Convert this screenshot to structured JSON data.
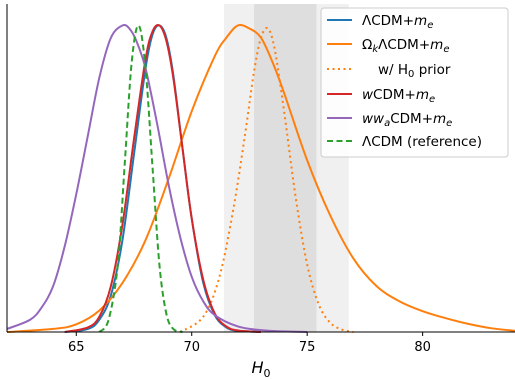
{
  "chart_data": {
    "type": "line",
    "title": "",
    "xlabel": "H_0",
    "ylabel": "",
    "xlim": [
      62,
      84
    ],
    "ylim": [
      0,
      1.07
    ],
    "xticks": [
      65,
      70,
      75,
      80
    ],
    "yticks": [],
    "grid": false,
    "legend_position": "top-right",
    "shaded_bands": [
      {
        "name": "outer band",
        "x": [
          71.4,
          76.8
        ],
        "color": "#f0f0f0"
      },
      {
        "name": "inner band",
        "x": [
          72.7,
          75.4
        ],
        "color": "#dedede"
      }
    ],
    "series": [
      {
        "name": "ΛCDM+m_e",
        "color": "#1f77b4",
        "style": "solid",
        "x": [
          64.5,
          65.5,
          66.0,
          66.5,
          67.0,
          67.5,
          68.0,
          68.3,
          68.6,
          68.9,
          69.2,
          69.6,
          70.0,
          70.5,
          71.0,
          71.5,
          72.0,
          73.0
        ],
        "y": [
          0.0,
          0.01,
          0.04,
          0.12,
          0.3,
          0.58,
          0.86,
          0.97,
          1.0,
          0.96,
          0.84,
          0.6,
          0.37,
          0.16,
          0.055,
          0.015,
          0.004,
          0.0
        ]
      },
      {
        "name": "Ω_kΛCDM+m_e",
        "color": "#ff7f0e",
        "style": "solid",
        "x": [
          62.0,
          64.0,
          65.0,
          66.0,
          67.0,
          68.0,
          69.0,
          70.0,
          71.0,
          71.5,
          72.0,
          72.5,
          73.0,
          73.5,
          74.0,
          75.0,
          76.0,
          77.0,
          78.0,
          79.0,
          80.0,
          81.0,
          82.0,
          83.0,
          84.0
        ],
        "y": [
          0.0,
          0.01,
          0.025,
          0.07,
          0.16,
          0.3,
          0.5,
          0.72,
          0.9,
          0.96,
          1.0,
          0.99,
          0.96,
          0.88,
          0.78,
          0.56,
          0.38,
          0.24,
          0.15,
          0.1,
          0.068,
          0.045,
          0.026,
          0.012,
          0.004
        ]
      },
      {
        "name": "w/ H_0 prior",
        "color": "#ff7f0e",
        "style": "dotted",
        "x": [
          69.5,
          70.5,
          71.2,
          71.8,
          72.3,
          72.7,
          73.0,
          73.3,
          73.6,
          74.0,
          74.5,
          75.0,
          75.5,
          76.0,
          76.5,
          77.0
        ],
        "y": [
          0.0,
          0.05,
          0.18,
          0.4,
          0.64,
          0.85,
          0.96,
          0.99,
          0.92,
          0.72,
          0.44,
          0.22,
          0.09,
          0.03,
          0.008,
          0.0
        ]
      },
      {
        "name": "wCDM+m_e",
        "color": "#d62728",
        "style": "solid",
        "x": [
          64.5,
          65.5,
          66.0,
          66.5,
          67.0,
          67.5,
          68.0,
          68.3,
          68.6,
          68.9,
          69.2,
          69.6,
          70.0,
          70.5,
          71.0,
          71.5,
          72.0,
          73.0
        ],
        "y": [
          0.0,
          0.015,
          0.05,
          0.15,
          0.35,
          0.63,
          0.89,
          0.98,
          1.0,
          0.95,
          0.83,
          0.6,
          0.37,
          0.17,
          0.06,
          0.018,
          0.005,
          0.0
        ]
      },
      {
        "name": "ww_aCDM+m_e",
        "color": "#9467bd",
        "style": "solid",
        "x": [
          62.0,
          63.0,
          63.5,
          64.0,
          64.5,
          65.0,
          65.5,
          66.0,
          66.5,
          67.0,
          67.3,
          67.6,
          68.0,
          68.5,
          69.0,
          69.5,
          70.0,
          70.5,
          71.0,
          72.0,
          73.0,
          74.0,
          75.0
        ],
        "y": [
          0.01,
          0.04,
          0.08,
          0.15,
          0.28,
          0.45,
          0.64,
          0.83,
          0.96,
          1.0,
          0.99,
          0.95,
          0.86,
          0.68,
          0.48,
          0.31,
          0.18,
          0.1,
          0.055,
          0.018,
          0.006,
          0.002,
          0.0
        ]
      },
      {
        "name": "ΛCDM (reference)",
        "color": "#2ca02c",
        "style": "dashed",
        "x": [
          66.0,
          66.4,
          66.8,
          67.1,
          67.4,
          67.7,
          68.0,
          68.3,
          68.6,
          68.9,
          69.2,
          69.6
        ],
        "y": [
          0.0,
          0.04,
          0.22,
          0.55,
          0.88,
          1.0,
          0.86,
          0.54,
          0.22,
          0.06,
          0.01,
          0.0
        ]
      }
    ]
  },
  "legend": [
    {
      "text": "ΛCDM+",
      "sub": "",
      "italic": "m",
      "italic_sub": "e"
    },
    {
      "text": "Ω",
      "sub": "k",
      "after": "ΛCDM+",
      "italic": "m",
      "italic_sub": "e"
    },
    {
      "text": "w/ H",
      "sub": "0",
      "after": " prior"
    },
    {
      "text": "w",
      "after": "CDM+",
      "italic": "m",
      "italic_sub": "e"
    },
    {
      "text": "ww",
      "sub": "a",
      "after": "CDM+",
      "italic": "m",
      "italic_sub": "e"
    },
    {
      "text": "ΛCDM (reference)"
    }
  ],
  "axis_label": {
    "main": "H",
    "sub": "0"
  }
}
